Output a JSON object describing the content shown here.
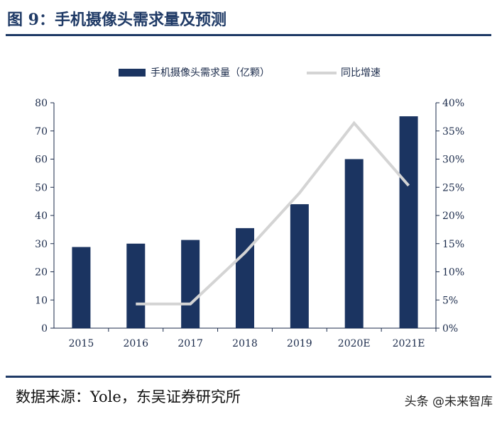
{
  "figure_title": "图 9：手机摄像头需求量及预测",
  "source": "数据来源：Yole，东吴证券研究所",
  "watermark": "头条 @未来智库",
  "colors": {
    "bar": "#1b3461",
    "line": "#d4d4d4",
    "text": "#1a2a4a",
    "title": "#1f3a66"
  },
  "chart_data": {
    "type": "bar",
    "categories": [
      "2015",
      "2016",
      "2017",
      "2018",
      "2019",
      "2020E",
      "2021E"
    ],
    "series": [
      {
        "name": "手机摄像头需求量（亿颗）",
        "type": "bar",
        "axis": "left",
        "values": [
          28.8,
          30.0,
          31.3,
          35.5,
          44.0,
          60.0,
          75.2
        ]
      },
      {
        "name": "同比增速",
        "type": "line",
        "axis": "right",
        "values": [
          null,
          4.3,
          4.3,
          13.4,
          24.0,
          36.4,
          25.3
        ]
      }
    ],
    "left_axis": {
      "ylim": [
        0,
        80
      ],
      "ticks": [
        "0",
        "10",
        "20",
        "30",
        "40",
        "50",
        "60",
        "70",
        "80"
      ]
    },
    "right_axis": {
      "ylim": [
        0,
        40
      ],
      "ticks": [
        "0%",
        "5%",
        "10%",
        "15%",
        "20%",
        "25%",
        "30%",
        "35%",
        "40%"
      ]
    },
    "legend": "top-center",
    "grid": false
  }
}
